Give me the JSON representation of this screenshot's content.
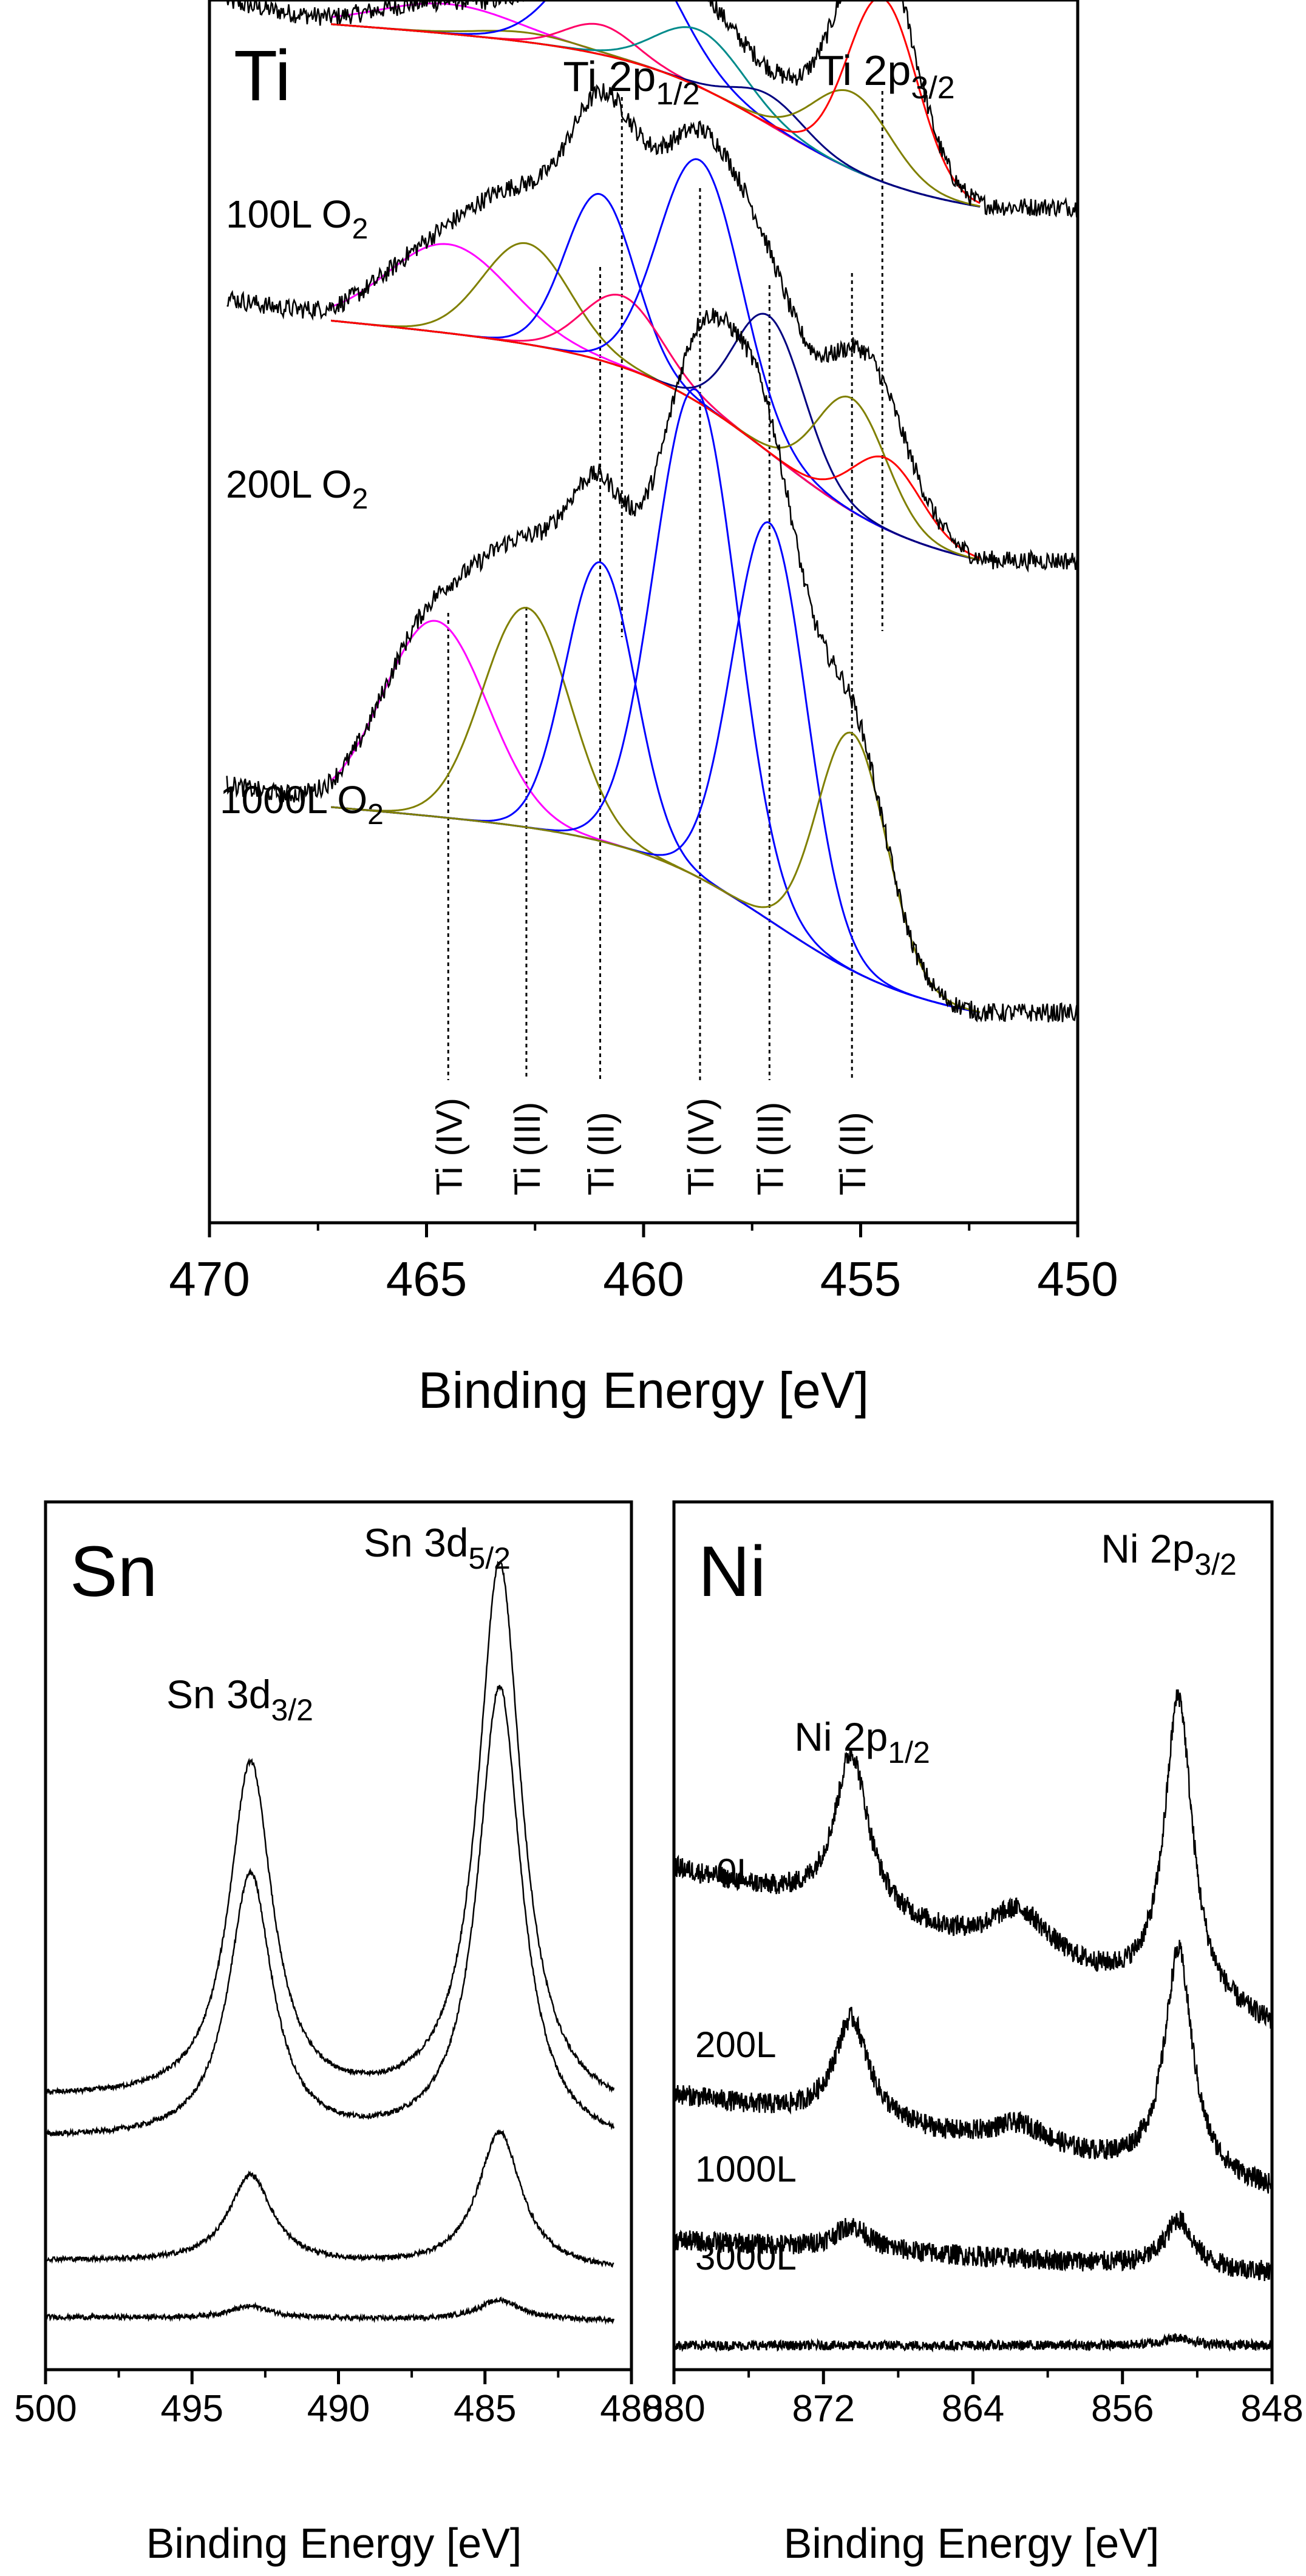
{
  "chart_data": [
    {
      "id": "ti",
      "type": "line",
      "title": "Ti",
      "xlabel": "Binding Energy [eV]",
      "ylabel": "",
      "xlim": [
        470,
        450
      ],
      "ylim": [
        0,
        100
      ],
      "x_ticks": [
        470,
        465,
        460,
        455,
        450
      ],
      "peak_labels": [
        {
          "text": "Ti 2p",
          "sub": "1/2",
          "x": 460.5
        },
        {
          "text": "Ti 2p",
          "sub": "3/2",
          "x": 454.5
        }
      ],
      "component_labels": [
        {
          "text": "Ti (IV)",
          "x": 464.5
        },
        {
          "text": "Ti (III)",
          "x": 462.7
        },
        {
          "text": "Ti (II)",
          "x": 461.0
        },
        {
          "text": "Ti (IV)",
          "x": 458.7
        },
        {
          "text": "Ti (III)",
          "x": 457.1
        },
        {
          "text": "Ti (II)",
          "x": 455.2
        }
      ],
      "spectra": [
        {
          "label": "100L O",
          "label_sub": "2",
          "offset": 85,
          "bg_left": 16,
          "bg_right": 0,
          "components": [
            {
              "color": "#ff00ff",
              "center": 464.5,
              "height": 2.5,
              "width": 1.6
            },
            {
              "color": "#808000",
              "center": 462.7,
              "height": 0.8,
              "width": 1.1
            },
            {
              "color": "#ff0066",
              "center": 461.0,
              "height": 2.5,
              "width": 0.8
            },
            {
              "color": "#0000ff",
              "center": 460.5,
              "height": 11.0,
              "width": 1.2
            },
            {
              "color": "#008b8b",
              "center": 458.7,
              "height": 4.8,
              "width": 1.0
            },
            {
              "color": "#000080",
              "center": 457.1,
              "height": 2.5,
              "width": 0.8
            },
            {
              "color": "#808000",
              "center": 455.2,
              "height": 6.5,
              "width": 0.9
            },
            {
              "color": "#ff0000",
              "center": 454.5,
              "height": 15.5,
              "width": 0.8
            }
          ]
        },
        {
          "label": "200L O",
          "label_sub": "2",
          "offset": 55,
          "bg_left": 21,
          "bg_right": 0,
          "components": [
            {
              "color": "#ff00ff",
              "center": 464.5,
              "height": 7.5,
              "width": 1.4
            },
            {
              "color": "#808000",
              "center": 462.7,
              "height": 8.5,
              "width": 1.0
            },
            {
              "color": "#0000ff",
              "center": 461.0,
              "height": 14.0,
              "width": 0.8
            },
            {
              "color": "#ff0066",
              "center": 460.5,
              "height": 6.0,
              "width": 0.9
            },
            {
              "color": "#0000ff",
              "center": 458.7,
              "height": 20.5,
              "width": 0.95
            },
            {
              "color": "#000080",
              "center": 457.1,
              "height": 11.5,
              "width": 0.8
            },
            {
              "color": "#808000",
              "center": 455.2,
              "height": 9.5,
              "width": 0.8
            },
            {
              "color": "#ff0000",
              "center": 454.4,
              "height": 6.0,
              "width": 0.8
            }
          ]
        },
        {
          "label": "1000L O",
          "label_sub": "2",
          "offset": 17,
          "bg_left": 18,
          "bg_right": 0,
          "components": [
            {
              "color": "#ff00ff",
              "center": 464.8,
              "height": 16.5,
              "width": 1.2
            },
            {
              "color": "#808000",
              "center": 462.7,
              "height": 18.5,
              "width": 1.0
            },
            {
              "color": "#0000ff",
              "center": 461.0,
              "height": 23.5,
              "width": 0.8
            },
            {
              "color": "#0000ff",
              "center": 458.8,
              "height": 41.0,
              "width": 0.95
            },
            {
              "color": "#0000ff",
              "center": 457.1,
              "height": 33.5,
              "width": 0.85
            },
            {
              "color": "#808000",
              "center": 455.2,
              "height": 20.0,
              "width": 0.8
            }
          ]
        }
      ]
    },
    {
      "id": "sn",
      "type": "line",
      "title": "Sn",
      "xlabel": "Binding Energy [eV]",
      "ylabel": "",
      "xlim": [
        500,
        480
      ],
      "ylim": [
        0,
        100
      ],
      "x_ticks": [
        500,
        495,
        490,
        485,
        480
      ],
      "peak_labels": [
        {
          "text": "Sn 3d",
          "sub": "3/2",
          "x": 493.0
        },
        {
          "text": "Sn 3d",
          "sub": "5/2",
          "x": 484.5
        }
      ],
      "spectra": [
        {
          "offset": 31,
          "slope": 2.5,
          "peaks": [
            {
              "center": 493.0,
              "height": 42,
              "width": 0.9
            },
            {
              "center": 484.5,
              "height": 68,
              "width": 0.9
            }
          ]
        },
        {
          "offset": 27,
          "slope": 1.5,
          "peaks": [
            {
              "center": 493.0,
              "height": 33,
              "width": 0.9
            },
            {
              "center": 484.5,
              "height": 57,
              "width": 0.9
            }
          ]
        },
        {
          "offset": 12,
          "slope": 1.5,
          "peaks": [
            {
              "center": 493.0,
              "height": 11,
              "width": 0.9
            },
            {
              "center": 484.5,
              "height": 17,
              "width": 0.9
            }
          ]
        },
        {
          "offset": 6,
          "slope": 0.5,
          "peaks": [
            {
              "center": 493.0,
              "height": 1.5,
              "width": 0.9
            },
            {
              "center": 484.5,
              "height": 2.5,
              "width": 0.9
            }
          ]
        }
      ]
    },
    {
      "id": "ni",
      "type": "line",
      "title": "Ni",
      "xlabel": "Binding Energy [eV]",
      "ylabel": "",
      "xlim": [
        880,
        848
      ],
      "ylim": [
        0,
        100
      ],
      "x_ticks": [
        880,
        872,
        864,
        856,
        848
      ],
      "peak_labels": [
        {
          "text": "Ni 2p",
          "sub": "1/2",
          "x": 870.5
        },
        {
          "text": "Ni 2p",
          "sub": "3/2",
          "x": 853.0
        }
      ],
      "spectra": [
        {
          "label": "0L",
          "offset": 52,
          "slope": -10,
          "peaks": [
            {
              "center": 870.5,
              "height": 20,
              "width": 1.1
            },
            {
              "center": 861.5,
              "height": 6,
              "width": 2.0
            },
            {
              "center": 853.0,
              "height": 38,
              "width": 0.9
            }
          ]
        },
        {
          "label": "200L",
          "offset": 28,
          "slope": -6,
          "peaks": [
            {
              "center": 870.5,
              "height": 13,
              "width": 1.1
            },
            {
              "center": 861.5,
              "height": 3,
              "width": 2.0
            },
            {
              "center": 853.0,
              "height": 28,
              "width": 0.9
            }
          ]
        },
        {
          "label": "1000L",
          "offset": 14,
          "slope": -2,
          "peaks": [
            {
              "center": 870.5,
              "height": 3,
              "width": 1.1
            },
            {
              "center": 853.0,
              "height": 6,
              "width": 0.9
            }
          ]
        },
        {
          "label": "3000L",
          "offset": 3,
          "slope": 0,
          "peaks": [
            {
              "center": 853.0,
              "height": 1,
              "width": 0.9
            }
          ]
        }
      ]
    }
  ]
}
